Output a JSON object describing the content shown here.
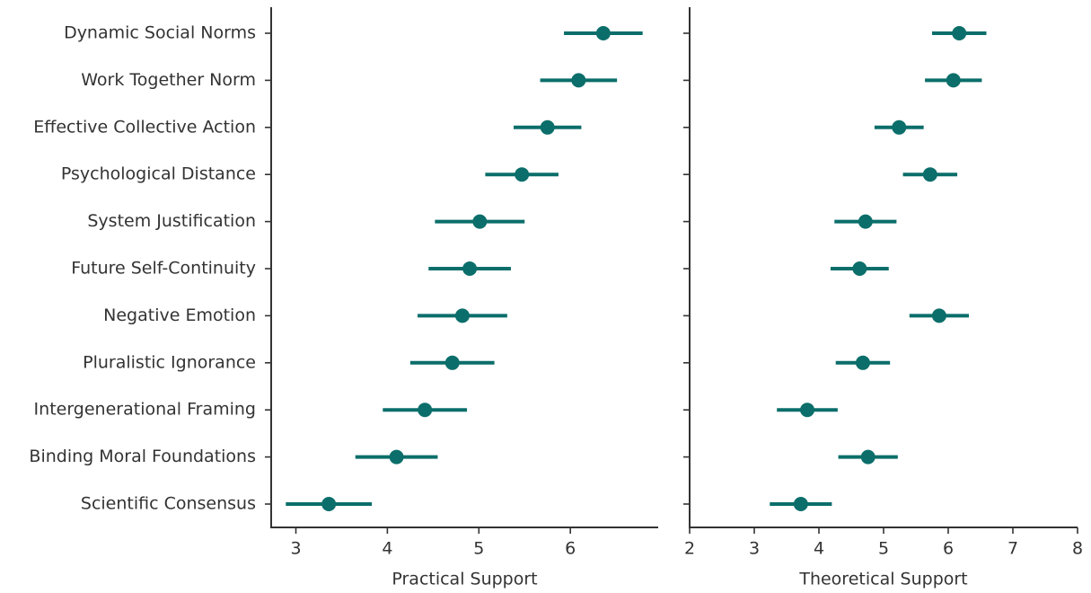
{
  "chart_data": [
    {
      "type": "dot",
      "xlabel": "Practical Support",
      "color": "#0b6e6a",
      "categories": [
        "Dynamic Social Norms",
        "Work Together Norm",
        "Effective Collective Action",
        "Psychological Distance",
        "System Justification",
        "Future Self-Continuity",
        "Negative Emotion",
        "Pluralistic Ignorance",
        "Intergenerational Framing",
        "Binding Moral Foundations",
        "Scientific Consensus"
      ],
      "values": [
        6.36,
        6.09,
        5.75,
        5.47,
        5.01,
        4.9,
        4.82,
        4.71,
        4.41,
        4.1,
        3.36
      ],
      "errors": [
        0.43,
        0.42,
        0.37,
        0.4,
        0.49,
        0.45,
        0.49,
        0.46,
        0.46,
        0.45,
        0.47
      ],
      "xlim": [
        2.73,
        6.96
      ],
      "xticks": [
        3,
        4,
        5,
        6
      ]
    },
    {
      "type": "dot",
      "xlabel": "Theoretical Support",
      "color": "#0b6e6a",
      "values": [
        6.17,
        6.08,
        5.24,
        5.72,
        4.72,
        4.63,
        5.86,
        4.68,
        3.82,
        4.76,
        3.72
      ],
      "errors": [
        0.42,
        0.44,
        0.38,
        0.42,
        0.48,
        0.45,
        0.46,
        0.42,
        0.47,
        0.46,
        0.48
      ],
      "xlim": [
        2,
        8
      ],
      "xticks": [
        2,
        3,
        4,
        5,
        6,
        7,
        8
      ]
    }
  ]
}
